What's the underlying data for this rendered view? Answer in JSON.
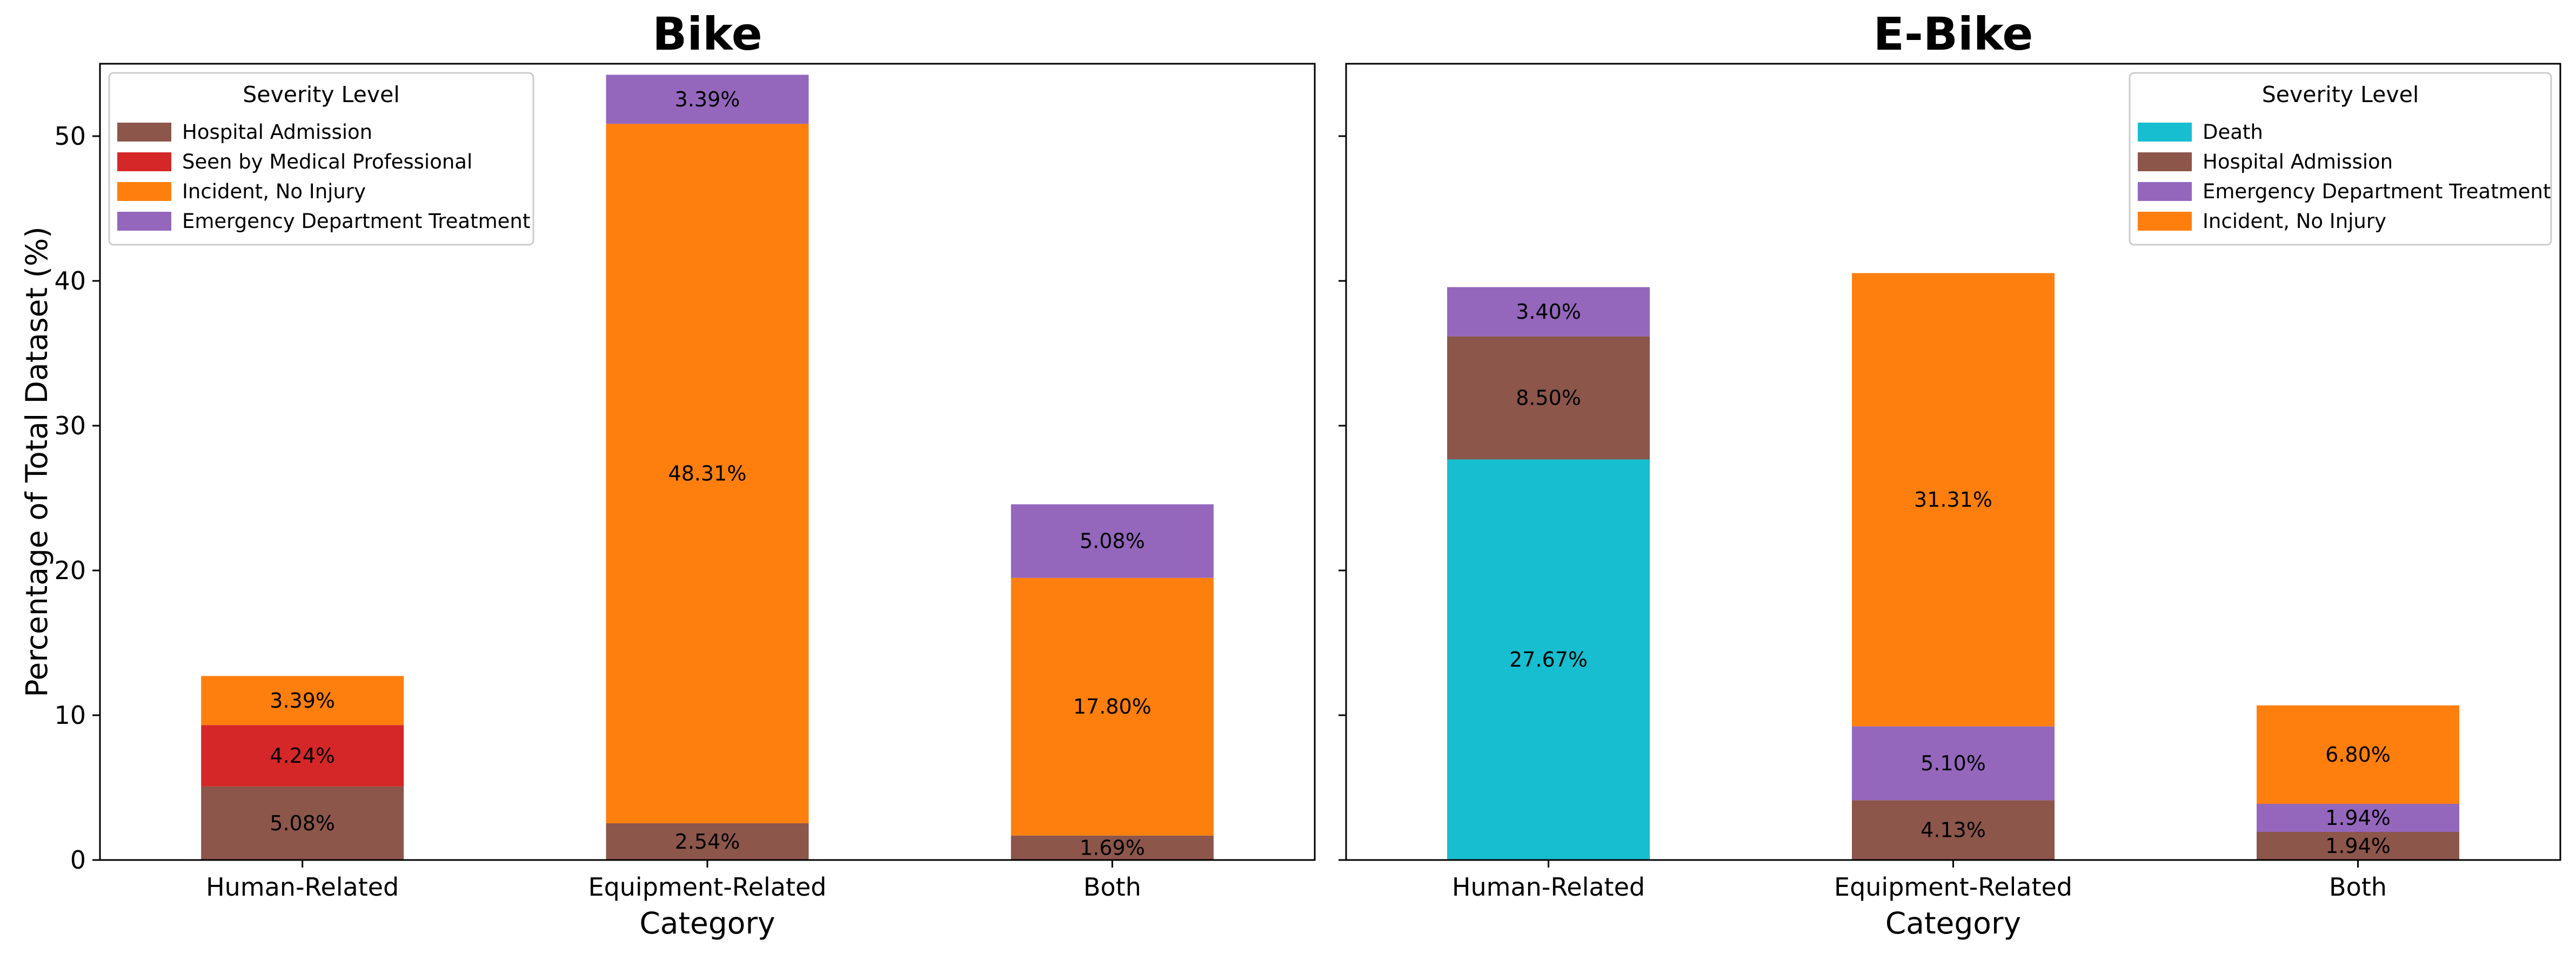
{
  "chart_data": [
    {
      "type": "bar",
      "stacked": true,
      "title": "Bike",
      "xlabel": "Category",
      "ylabel": "Percentage of Total Dataset (%)",
      "ylim": [
        0,
        55
      ],
      "yticks": [
        "0",
        "10",
        "20",
        "30",
        "40",
        "50"
      ],
      "categories": [
        "Human-Related",
        "Equipment-Related",
        "Both"
      ],
      "grid": false,
      "legend_title": "Severity Level",
      "legend_position": "top-left",
      "legend_order": [
        "Hospital Admission",
        "Seen by Medical Professional",
        "Incident, No Injury",
        "Emergency Department Treatment"
      ],
      "stacks": [
        [
          {
            "name": "Hospital Admission",
            "value": 5.08,
            "label": "5.08%",
            "color": "#8c564b"
          },
          {
            "name": "Seen by Medical Professional",
            "value": 4.24,
            "label": "4.24%",
            "color": "#d62728"
          },
          {
            "name": "Incident, No Injury",
            "value": 3.39,
            "label": "3.39%",
            "color": "#ff7f0e"
          }
        ],
        [
          {
            "name": "Hospital Admission",
            "value": 2.54,
            "label": "2.54%",
            "color": "#8c564b"
          },
          {
            "name": "Incident, No Injury",
            "value": 48.31,
            "label": "48.31%",
            "color": "#ff7f0e"
          },
          {
            "name": "Emergency Department Treatment",
            "value": 3.39,
            "label": "3.39%",
            "color": "#9467bd"
          }
        ],
        [
          {
            "name": "Hospital Admission",
            "value": 1.69,
            "label": "1.69%",
            "color": "#8c564b"
          },
          {
            "name": "Incident, No Injury",
            "value": 17.8,
            "label": "17.80%",
            "color": "#ff7f0e"
          },
          {
            "name": "Emergency Department Treatment",
            "value": 5.08,
            "label": "5.08%",
            "color": "#9467bd"
          }
        ]
      ]
    },
    {
      "type": "bar",
      "stacked": true,
      "title": "E-Bike",
      "xlabel": "Category",
      "ylabel": "",
      "ylim": [
        0,
        55
      ],
      "categories": [
        "Human-Related",
        "Equipment-Related",
        "Both"
      ],
      "grid": false,
      "legend_title": "Severity Level",
      "legend_position": "top-right",
      "legend_order": [
        "Death",
        "Hospital Admission",
        "Emergency Department Treatment",
        "Incident, No Injury"
      ],
      "stacks": [
        [
          {
            "name": "Death",
            "value": 27.67,
            "label": "27.67%",
            "color": "#17becf"
          },
          {
            "name": "Hospital Admission",
            "value": 8.5,
            "label": "8.50%",
            "color": "#8c564b"
          },
          {
            "name": "Emergency Department Treatment",
            "value": 3.4,
            "label": "3.40%",
            "color": "#9467bd"
          }
        ],
        [
          {
            "name": "Hospital Admission",
            "value": 4.13,
            "label": "4.13%",
            "color": "#8c564b"
          },
          {
            "name": "Emergency Department Treatment",
            "value": 5.1,
            "label": "5.10%",
            "color": "#9467bd"
          },
          {
            "name": "Incident, No Injury",
            "value": 31.31,
            "label": "31.31%",
            "color": "#ff7f0e"
          }
        ],
        [
          {
            "name": "Hospital Admission",
            "value": 1.94,
            "label": "1.94%",
            "color": "#8c564b"
          },
          {
            "name": "Emergency Department Treatment",
            "value": 1.94,
            "label": "1.94%",
            "color": "#9467bd"
          },
          {
            "name": "Incident, No Injury",
            "value": 6.8,
            "label": "6.80%",
            "color": "#ff7f0e"
          }
        ]
      ]
    }
  ]
}
